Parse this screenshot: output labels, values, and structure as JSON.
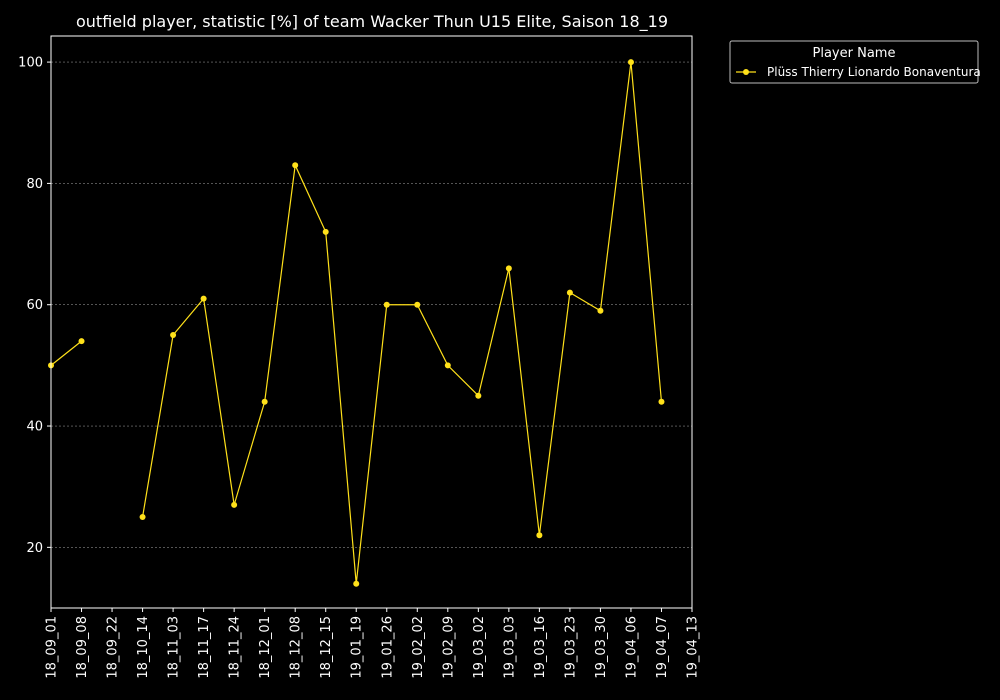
{
  "chart_data": {
    "type": "line",
    "title": "outfield player, statistic [%] of team Wacker Thun U15 Elite, Saison 18_19",
    "xlabel": "",
    "ylabel": "",
    "categories": [
      "18_09_01",
      "18_09_08",
      "18_09_22",
      "18_10_14",
      "18_11_03",
      "18_11_17",
      "18_11_24",
      "18_12_01",
      "18_12_08",
      "18_12_15",
      "19_01_19",
      "19_01_26",
      "19_02_02",
      "19_02_09",
      "19_03_02",
      "19_03_03",
      "19_03_16",
      "19_03_23",
      "19_03_30",
      "19_04_06",
      "19_04_07",
      "19_04_13"
    ],
    "series": [
      {
        "name": "Plüss Thierry Lionardo Bonaventura",
        "values": [
          50,
          54,
          null,
          25,
          55,
          61,
          27,
          44,
          83,
          72,
          14,
          60,
          60,
          50,
          45,
          66,
          22,
          62,
          59,
          100,
          44,
          null
        ]
      }
    ],
    "ylim": [
      10,
      104.3
    ],
    "yticks": [
      "20",
      "40",
      "60",
      "80",
      "100"
    ],
    "legend": {
      "title": "Player Name",
      "placement": "top-right-outside"
    },
    "grid": true,
    "colors": {
      "background": "#000000",
      "axes": "#ffffff",
      "grid": "#888888",
      "series": "#ffe11a"
    }
  }
}
